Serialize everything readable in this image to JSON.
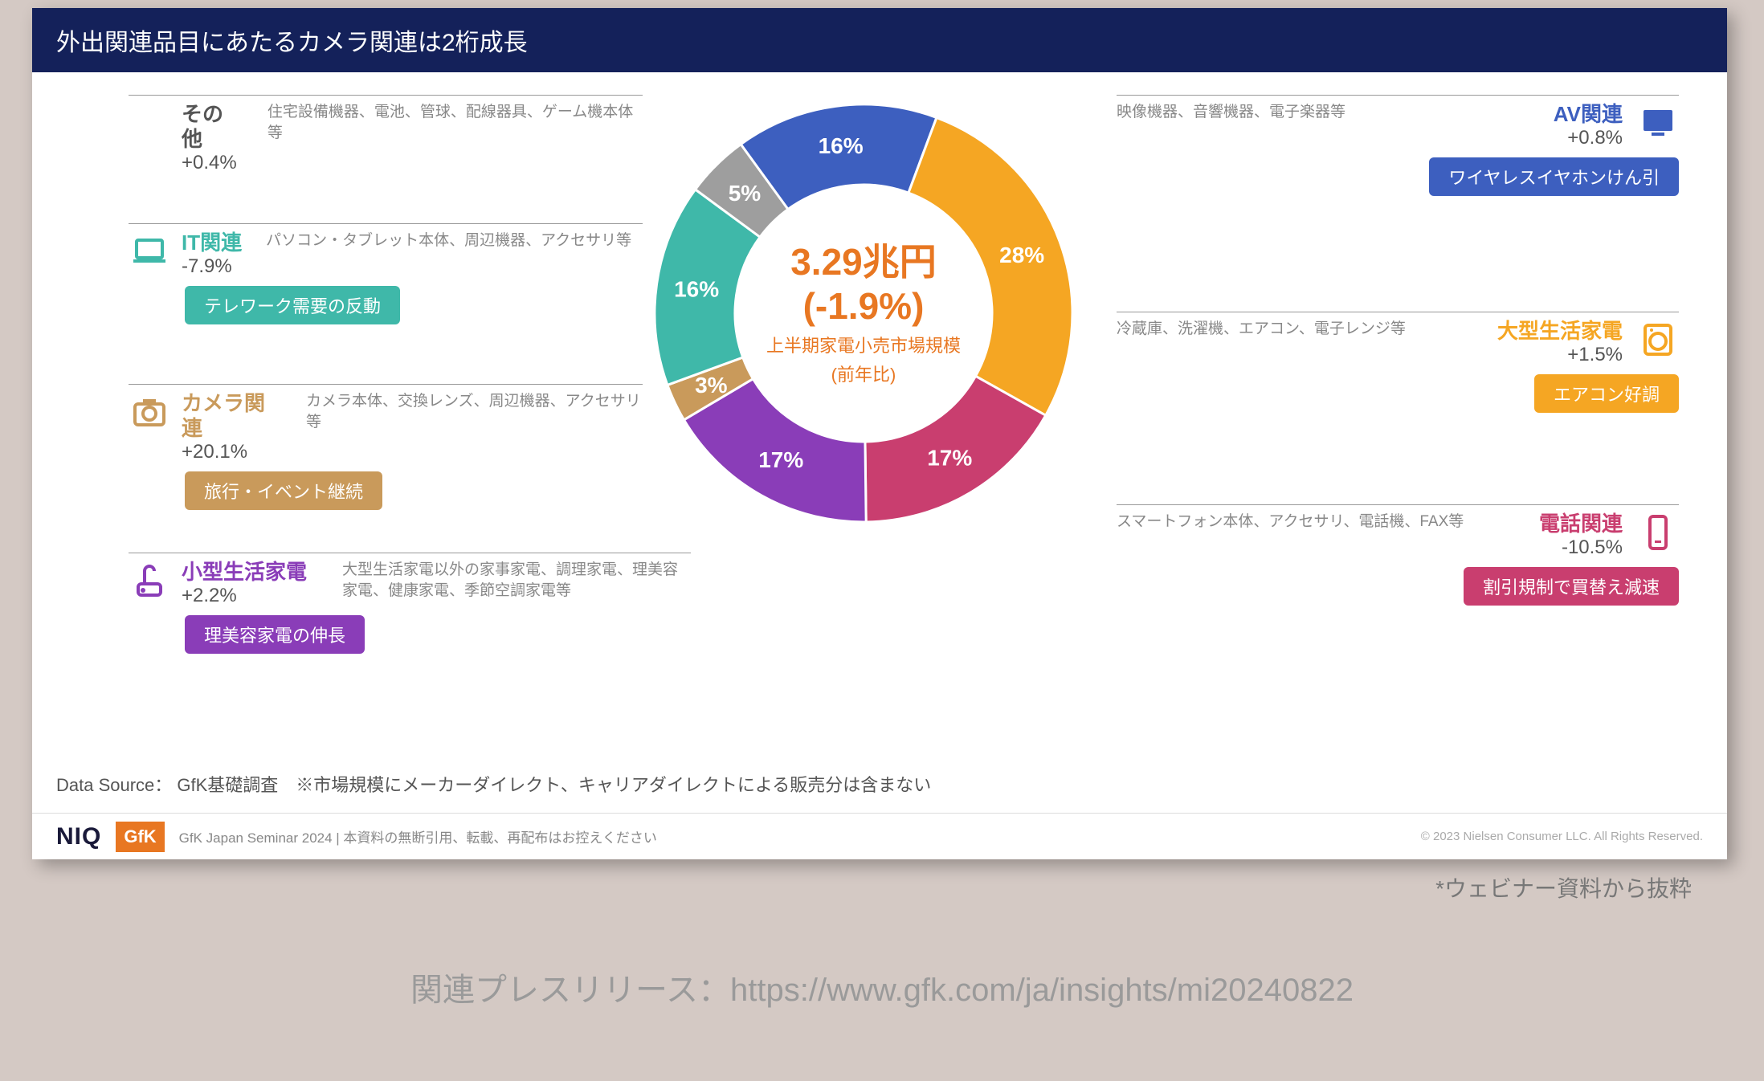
{
  "slide": {
    "title": "外出関連品目にあたるカメラ関連は2桁成長",
    "background": "#ffffff",
    "title_bar_bg": "#14215a",
    "title_color": "#ffffff"
  },
  "donut": {
    "type": "donut",
    "outer_radius": 260,
    "inner_radius": 160,
    "background": "#ffffff",
    "slices": [
      {
        "key": "av",
        "label": "16%",
        "value": 16,
        "color": "#3d5fbf"
      },
      {
        "key": "large",
        "label": "28%",
        "value": 28,
        "color": "#f5a623"
      },
      {
        "key": "phone",
        "label": "17%",
        "value": 17,
        "color": "#c93e6f"
      },
      {
        "key": "small",
        "label": "17%",
        "value": 17,
        "color": "#8a3db8"
      },
      {
        "key": "camera",
        "label": "3%",
        "value": 3,
        "color": "#c99a5b"
      },
      {
        "key": "it",
        "label": "16%",
        "value": 16,
        "color": "#3fb8a9"
      },
      {
        "key": "other",
        "label": "5%",
        "value": 5,
        "color": "#9e9e9e"
      }
    ],
    "center": {
      "line1": "3.29兆円",
      "line2": "(-1.9%)",
      "sub1": "上半期家電小売市場規模",
      "sub2": "(前年比)",
      "color": "#e87722"
    },
    "start_angle_deg": -126
  },
  "categories": {
    "other": {
      "name": "その他",
      "change": "+0.4%",
      "desc": "住宅設備機器、電池、管球、配線器具、ゲーム機本体等",
      "color": "#9e9e9e",
      "badge": null
    },
    "it": {
      "name": "IT関連",
      "change": "-7.9%",
      "desc": "パソコン・タブレット本体、周辺機器、アクセサリ等",
      "color": "#3fb8a9",
      "badge": "テレワーク需要の反動"
    },
    "camera": {
      "name": "カメラ関連",
      "change": "+20.1%",
      "desc": "カメラ本体、交換レンズ、周辺機器、アクセサリ等",
      "color": "#c99a5b",
      "badge": "旅行・イベント継続"
    },
    "small": {
      "name": "小型生活家電",
      "change": "+2.2%",
      "desc": "大型生活家電以外の家事家電、調理家電、理美容家電、健康家電、季節空調家電等",
      "color": "#8a3db8",
      "badge": "理美容家電の伸長"
    },
    "av": {
      "name": "AV関連",
      "change": "+0.8%",
      "desc": "映像機器、音響機器、電子楽器等",
      "color": "#3d5fbf",
      "badge": "ワイヤレスイヤホンけん引"
    },
    "large": {
      "name": "大型生活家電",
      "change": "+1.5%",
      "desc": "冷蔵庫、洗濯機、エアコン、電子レンジ等",
      "color": "#f5a623",
      "badge": "エアコン好調"
    },
    "phone": {
      "name": "電話関連",
      "change": "-10.5%",
      "desc": "スマートフォン本体、アクセサリ、電話機、FAX等",
      "color": "#c93e6f",
      "badge": "割引規制で買替え減速"
    }
  },
  "source": "Data Source： GfK基礎調査　※市場規模にメーカーダイレクト、キャリアダイレクトによる販売分は含まない",
  "footer": {
    "niq": "NIQ",
    "gfk": "GfK",
    "text": "GfK Japan Seminar 2024 | 本資料の無断引用、転載、再配布はお控えください",
    "copy": "© 2023 Nielsen Consumer LLC. All Rights Reserved."
  },
  "outside": {
    "webinar_note": "*ウェビナー資料から抜粋",
    "press": "関連プレスリリース：https://www.gfk.com/ja/insights/mi20240822"
  }
}
